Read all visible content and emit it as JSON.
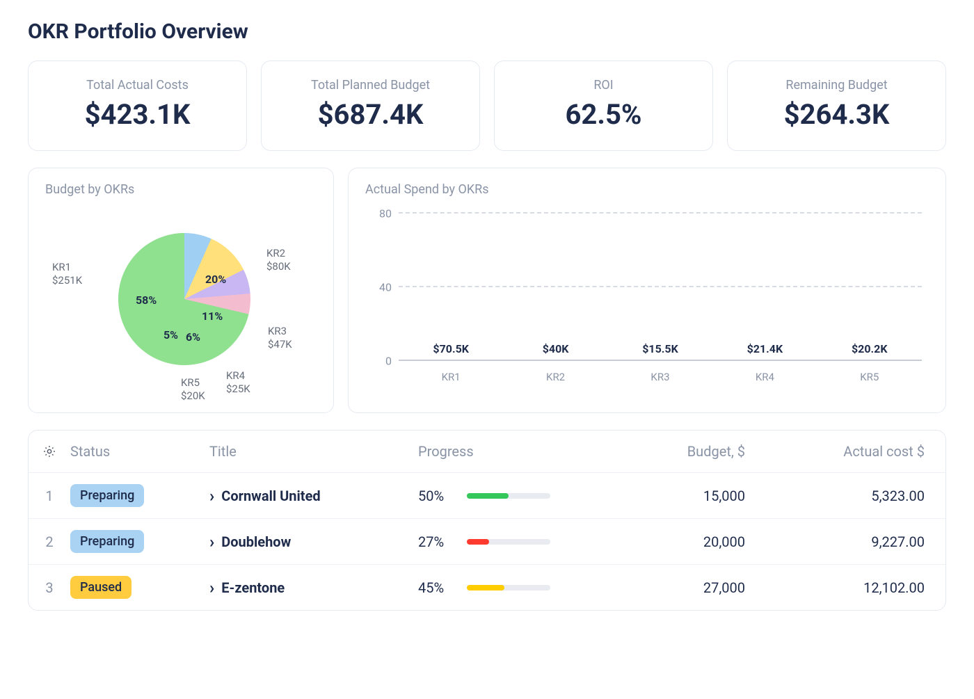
{
  "page": {
    "title": "OKR Portfolio Overview"
  },
  "colors": {
    "text_primary": "#1e2b4a",
    "text_muted": "#8a94a6",
    "card_border": "#e5e9f0",
    "row_border": "#eef0f5",
    "background": "#ffffff",
    "progress_track": "#e8ebf0",
    "grid_dash": "#d7dbe3"
  },
  "kpis": [
    {
      "label": "Total Actual Costs",
      "value": "$423.1K"
    },
    {
      "label": "Total Planned Budget",
      "value": "$687.4K"
    },
    {
      "label": "ROI",
      "value": "62.5%"
    },
    {
      "label": "Remaining Budget",
      "value": "$264.3K"
    }
  ],
  "pie_chart": {
    "title": "Budget by OKRs",
    "type": "pie",
    "slices": [
      {
        "name": "KR1",
        "amount": "$251K",
        "percent": 58,
        "color": "#8fe08f"
      },
      {
        "name": "KR2",
        "amount": "$80K",
        "percent": 20,
        "color": "#9fcff2"
      },
      {
        "name": "KR3",
        "amount": "$47K",
        "percent": 11,
        "color": "#ffe07a"
      },
      {
        "name": "KR4",
        "amount": "$25K",
        "percent": 6,
        "color": "#c8b7f2"
      },
      {
        "name": "KR5",
        "amount": "$20K",
        "percent": 5,
        "color": "#f4bccf"
      }
    ],
    "pct_label_fontsize": 16,
    "side_label_fontsize": 15
  },
  "bar_chart": {
    "title": "Actual Spend by OKRs",
    "type": "bar",
    "ylim": [
      0,
      80
    ],
    "yticks": [
      0,
      40,
      80
    ],
    "grid_color": "#d7dbe3",
    "axis_label_color": "#8a94a6",
    "value_label_fontsize": 16,
    "category_fontsize": 15,
    "bars": [
      {
        "category": "KR1",
        "value": 70.5,
        "label": "$70.5K",
        "color": "#8fe08f"
      },
      {
        "category": "KR2",
        "value": 40.0,
        "label": "$40K",
        "color": "#9fcff2"
      },
      {
        "category": "KR3",
        "value": 15.5,
        "label": "$15.5K",
        "color": "#ffe07a"
      },
      {
        "category": "KR4",
        "value": 21.4,
        "label": "$21.4K",
        "color": "#c8b7f2"
      },
      {
        "category": "KR5",
        "value": 20.2,
        "label": "$20.2K",
        "color": "#f4bccf"
      }
    ]
  },
  "table": {
    "columns": {
      "status": "Status",
      "title": "Title",
      "progress": "Progress",
      "budget": "Budget, $",
      "actual": "Actual cost $"
    },
    "status_styles": {
      "Preparing": {
        "bg": "#a9d2f3",
        "text": "#1e2b4a"
      },
      "Paused": {
        "bg": "#ffcc3f",
        "text": "#1e2b4a"
      }
    },
    "progress_colors": {
      "green": "#34c759",
      "red": "#ff3b30",
      "yellow": "#ffcc00"
    },
    "rows": [
      {
        "n": 1,
        "status": "Preparing",
        "title": "Cornwall United",
        "progress_pct": 50,
        "progress_label": "50%",
        "progress_color_key": "green",
        "budget": "15,000",
        "actual": "5,323.00"
      },
      {
        "n": 2,
        "status": "Preparing",
        "title": "Doublehow",
        "progress_pct": 27,
        "progress_label": "27%",
        "progress_color_key": "red",
        "budget": "20,000",
        "actual": "9,227.00"
      },
      {
        "n": 3,
        "status": "Paused",
        "title": "E-zentone",
        "progress_pct": 45,
        "progress_label": "45%",
        "progress_color_key": "yellow",
        "budget": "27,000",
        "actual": "12,102.00"
      }
    ]
  }
}
